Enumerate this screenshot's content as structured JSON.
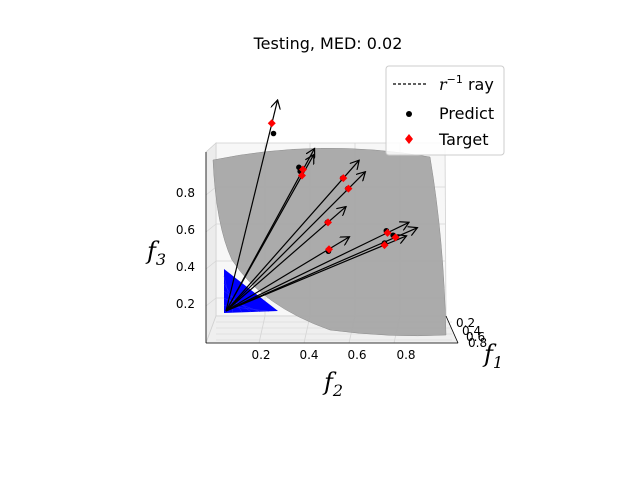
{
  "chart_data": {
    "type": "scatter",
    "projection": "3d",
    "title": "Testing, MED: 0.02",
    "axes": {
      "f1": {
        "label": "f",
        "subscript": "1",
        "ticks": [
          "0.2",
          "0.4",
          "0.6",
          "0.8"
        ],
        "lim": [
          0,
          1
        ]
      },
      "f2": {
        "label": "f",
        "subscript": "2",
        "ticks": [
          "0.2",
          "0.4",
          "0.6",
          "0.8"
        ],
        "lim": [
          0,
          1
        ]
      },
      "f3": {
        "label": "f",
        "subscript": "3",
        "ticks": [
          "0.2",
          "0.4",
          "0.6",
          "0.8"
        ],
        "lim": [
          0,
          1
        ]
      }
    },
    "grid": true,
    "legend": {
      "placement": "top-right",
      "entries": [
        {
          "label_prefix": "r",
          "label_sup": "−1",
          "label_suffix": " ray",
          "marker": "dashed-line",
          "color": "#000000"
        },
        {
          "label": "Predict",
          "marker": "circle",
          "color": "#000000"
        },
        {
          "label": "Target",
          "marker": "diamond",
          "color": "#ff0000"
        }
      ]
    },
    "colors": {
      "pareto_front": "#a6a6a6",
      "simplex": "#0000ff",
      "predict": "#000000",
      "target": "#ff0000",
      "arrow": "#000000"
    },
    "points": [
      {
        "target": [
          0.17,
          0.3,
          0.93
        ],
        "predict": [
          0.18,
          0.3,
          0.88
        ]
      },
      {
        "target": [
          0.4,
          0.15,
          0.71
        ],
        "predict": [
          0.38,
          0.14,
          0.72
        ]
      },
      {
        "target": [
          0.37,
          0.22,
          0.68
        ],
        "predict": [
          0.36,
          0.22,
          0.7
        ]
      },
      {
        "target": [
          0.55,
          0.47,
          0.62
        ],
        "predict": [
          0.55,
          0.46,
          0.62
        ]
      },
      {
        "target": [
          0.5,
          0.53,
          0.67
        ],
        "predict": [
          0.5,
          0.52,
          0.67
        ]
      },
      {
        "target": [
          0.86,
          0.35,
          0.39
        ],
        "predict": [
          0.85,
          0.34,
          0.4
        ]
      },
      {
        "target": [
          0.32,
          0.8,
          0.45
        ],
        "predict": [
          0.32,
          0.79,
          0.45
        ]
      },
      {
        "target": [
          0.78,
          0.45,
          0.41
        ],
        "predict": [
          0.77,
          0.46,
          0.42
        ]
      },
      {
        "target": [
          0.78,
          0.4,
          0.35
        ],
        "predict": [
          0.78,
          0.4,
          0.36
        ]
      },
      {
        "target": [
          0.36,
          0.7,
          0.32
        ],
        "predict": [
          0.36,
          0.69,
          0.31
        ]
      }
    ]
  }
}
